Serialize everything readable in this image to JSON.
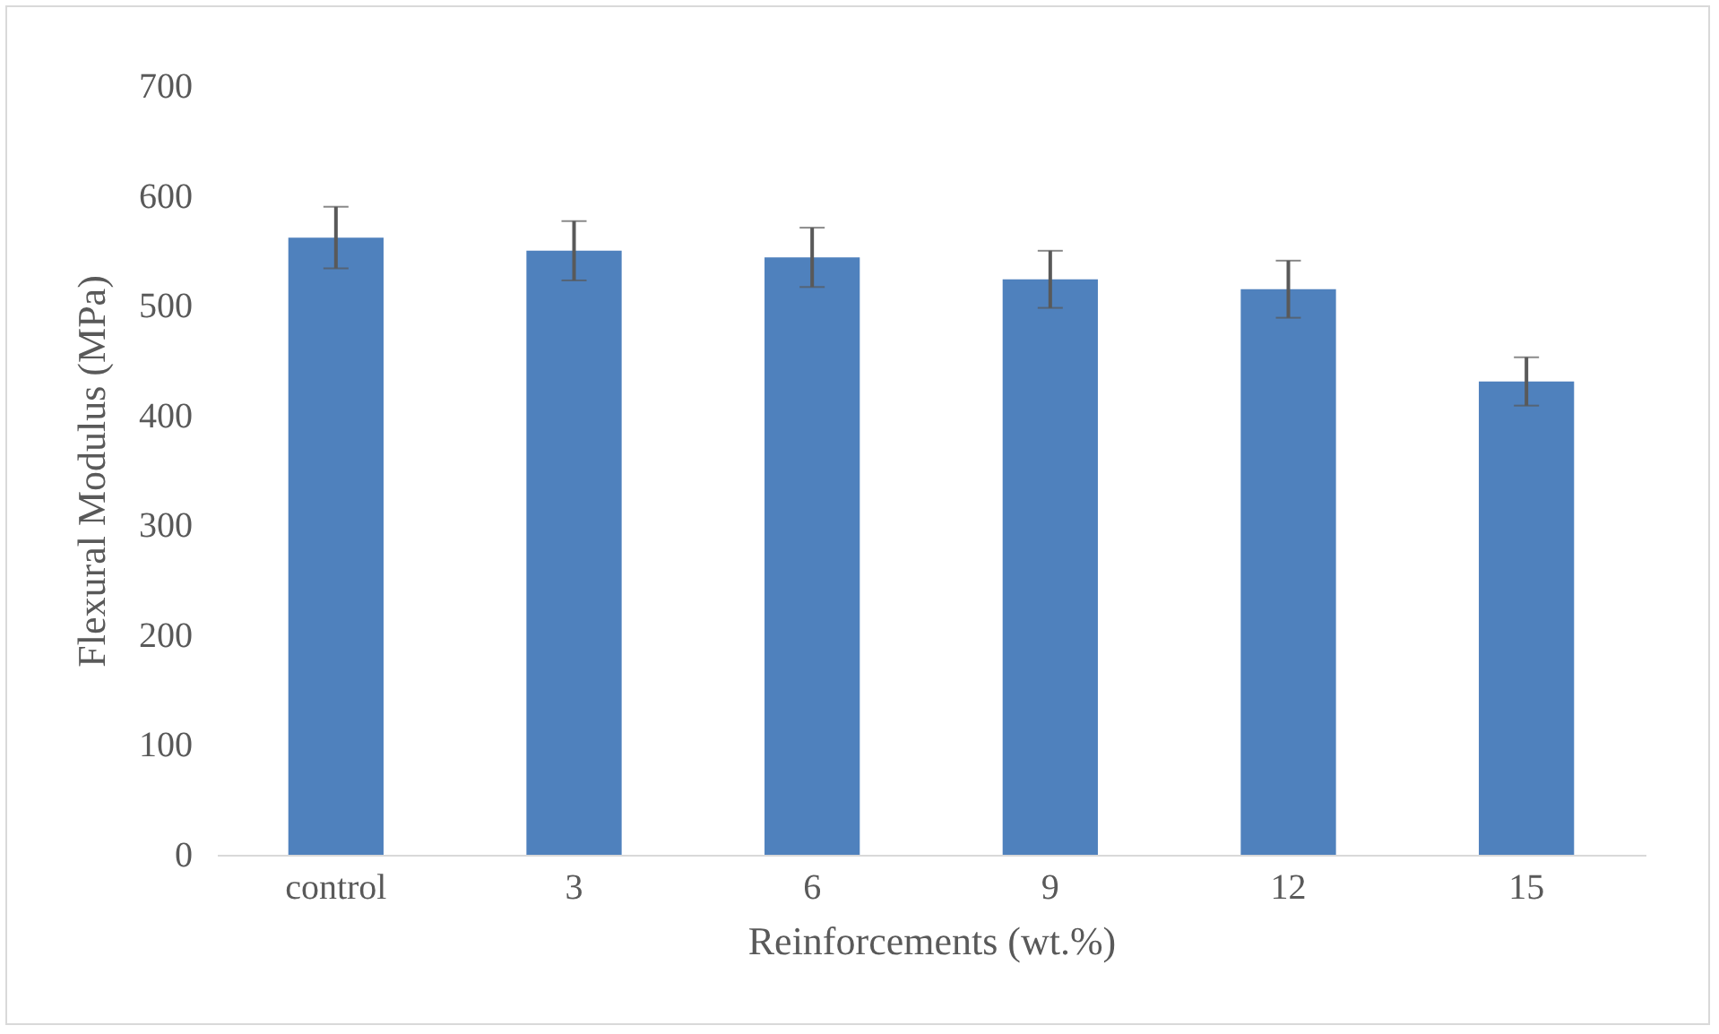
{
  "chart_data": {
    "type": "bar",
    "xlabel": "Reinforcements (wt.%)",
    "ylabel": "Flexural Modulus (MPa)",
    "categories": [
      "control",
      "3",
      "6",
      "9",
      "12",
      "15"
    ],
    "values": [
      562,
      550,
      544,
      524,
      515,
      431
    ],
    "errors": [
      28,
      27,
      27,
      26,
      26,
      22
    ],
    "color": "#4f81bd",
    "ylim": [
      0,
      700
    ],
    "yticks": [
      0,
      100,
      200,
      300,
      400,
      500,
      600,
      700
    ],
    "grid": false
  }
}
